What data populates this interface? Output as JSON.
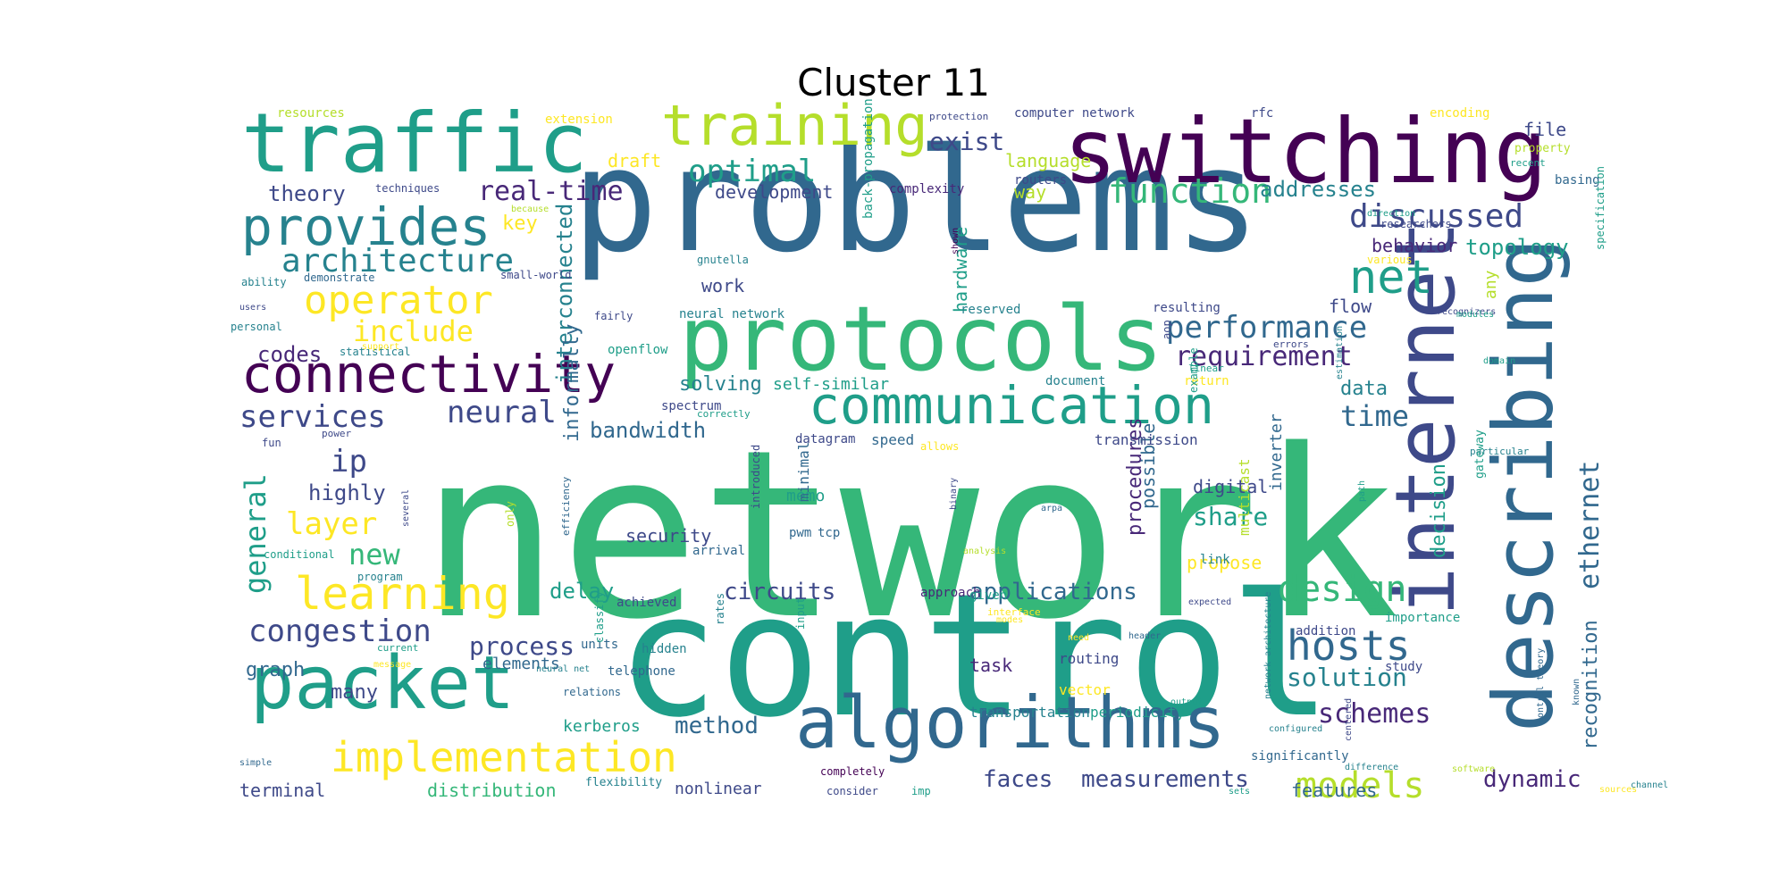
{
  "title": "Cluster 11",
  "palette": {
    "dark_purple": "#440154",
    "purple": "#482878",
    "indigo": "#3e4989",
    "blue": "#31688e",
    "teal": "#26828e",
    "cyan_green": "#1f9e89",
    "green": "#35b779",
    "light_green": "#6ece58",
    "yellow_green": "#b5de2b",
    "yellow": "#fde725"
  },
  "words": [
    {
      "text": "network",
      "c": "green"
    },
    {
      "text": "control",
      "c": "cyan_green"
    },
    {
      "text": "problems",
      "c": "blue"
    },
    {
      "text": "switching",
      "c": "dark_purple"
    },
    {
      "text": "traffic",
      "c": "cyan_green"
    },
    {
      "text": "protocols",
      "c": "green"
    },
    {
      "text": "internet",
      "c": "indigo"
    },
    {
      "text": "describing",
      "c": "blue"
    },
    {
      "text": "packet",
      "c": "cyan_green"
    },
    {
      "text": "algorithms",
      "c": "blue"
    },
    {
      "text": "communication",
      "c": "cyan_green"
    },
    {
      "text": "connectivity",
      "c": "dark_purple"
    },
    {
      "text": "training",
      "c": "yellow_green"
    },
    {
      "text": "provides",
      "c": "teal"
    },
    {
      "text": "learning",
      "c": "yellow"
    },
    {
      "text": "implementation",
      "c": "yellow"
    },
    {
      "text": "operator",
      "c": "yellow"
    },
    {
      "text": "architecture",
      "c": "teal"
    },
    {
      "text": "net",
      "c": "cyan_green"
    },
    {
      "text": "hosts",
      "c": "blue"
    },
    {
      "text": "models",
      "c": "yellow_green"
    },
    {
      "text": "design",
      "c": "green"
    },
    {
      "text": "congestion",
      "c": "indigo"
    },
    {
      "text": "function",
      "c": "green"
    },
    {
      "text": "discussed",
      "c": "indigo"
    },
    {
      "text": "performance",
      "c": "blue"
    },
    {
      "text": "optimal",
      "c": "cyan_green"
    },
    {
      "text": "neural",
      "c": "indigo"
    },
    {
      "text": "services",
      "c": "indigo"
    },
    {
      "text": "real-time",
      "c": "purple"
    },
    {
      "text": "include",
      "c": "yellow"
    },
    {
      "text": "layer",
      "c": "yellow"
    },
    {
      "text": "general",
      "c": "cyan_green"
    },
    {
      "text": "ip",
      "c": "indigo"
    },
    {
      "text": "new",
      "c": "green"
    },
    {
      "text": "ethernet",
      "c": "blue"
    },
    {
      "text": "requirement",
      "c": "purple"
    },
    {
      "text": "time",
      "c": "blue"
    },
    {
      "text": "exist",
      "c": "indigo"
    },
    {
      "text": "schemes",
      "c": "purple"
    },
    {
      "text": "solution",
      "c": "teal"
    },
    {
      "text": "process",
      "c": "indigo"
    },
    {
      "text": "circuits",
      "c": "indigo"
    },
    {
      "text": "applications",
      "c": "blue"
    },
    {
      "text": "faces",
      "c": "indigo"
    },
    {
      "text": "measurements",
      "c": "indigo"
    },
    {
      "text": "method",
      "c": "blue"
    },
    {
      "text": "share",
      "c": "cyan_green"
    },
    {
      "text": "dynamic",
      "c": "purple"
    },
    {
      "text": "topology",
      "c": "cyan_green"
    },
    {
      "text": "addresses",
      "c": "teal"
    },
    {
      "text": "theory",
      "c": "indigo"
    },
    {
      "text": "highly",
      "c": "indigo"
    },
    {
      "text": "codes",
      "c": "purple"
    },
    {
      "text": "delay",
      "c": "cyan_green"
    },
    {
      "text": "bandwidth",
      "c": "blue"
    },
    {
      "text": "solving",
      "c": "teal"
    },
    {
      "text": "data",
      "c": "teal"
    },
    {
      "text": "key",
      "c": "yellow"
    },
    {
      "text": "many",
      "c": "indigo"
    },
    {
      "text": "graph",
      "c": "blue"
    },
    {
      "text": "decision",
      "c": "cyan_green"
    },
    {
      "text": "interconnected",
      "c": "teal"
    },
    {
      "text": "informally",
      "c": "blue"
    },
    {
      "text": "behavior",
      "c": "purple"
    },
    {
      "text": "procedures",
      "c": "purple"
    },
    {
      "text": "recognition",
      "c": "blue"
    },
    {
      "text": "features",
      "c": "blue"
    },
    {
      "text": "language",
      "c": "yellow_green"
    },
    {
      "text": "draft",
      "c": "yellow"
    },
    {
      "text": "file",
      "c": "indigo"
    },
    {
      "text": "work",
      "c": "indigo"
    },
    {
      "text": "development",
      "c": "indigo"
    },
    {
      "text": "way",
      "c": "yellow_green"
    },
    {
      "text": "hardware",
      "c": "cyan_green"
    },
    {
      "text": "flow",
      "c": "indigo"
    },
    {
      "text": "any",
      "c": "yellow_green"
    },
    {
      "text": "possible",
      "c": "blue"
    },
    {
      "text": "digital",
      "c": "indigo"
    },
    {
      "text": "security",
      "c": "indigo"
    },
    {
      "text": "propose",
      "c": "yellow"
    },
    {
      "text": "memo",
      "c": "cyan_green"
    },
    {
      "text": "elements",
      "c": "blue"
    },
    {
      "text": "task",
      "c": "purple"
    },
    {
      "text": "kerberos",
      "c": "cyan_green"
    },
    {
      "text": "distribution",
      "c": "green"
    },
    {
      "text": "nonlinear",
      "c": "indigo"
    },
    {
      "text": "terminal",
      "c": "indigo"
    },
    {
      "text": "self-similar",
      "c": "cyan_green"
    },
    {
      "text": "inverter",
      "c": "blue"
    },
    {
      "text": "multicast",
      "c": "yellow_green"
    },
    {
      "text": "routing",
      "c": "indigo"
    },
    {
      "text": "transportation",
      "c": "teal"
    },
    {
      "text": "periodicity",
      "c": "cyan_green"
    },
    {
      "text": "vector",
      "c": "yellow"
    },
    {
      "text": "link",
      "c": "teal"
    },
    {
      "text": "transmission",
      "c": "indigo"
    },
    {
      "text": "speed",
      "c": "blue"
    },
    {
      "text": "datagram",
      "c": "indigo"
    },
    {
      "text": "significantly",
      "c": "blue"
    },
    {
      "text": "study",
      "c": "indigo"
    },
    {
      "text": "importance",
      "c": "cyan_green"
    },
    {
      "text": "addition",
      "c": "indigo"
    },
    {
      "text": "hidden",
      "c": "teal"
    },
    {
      "text": "units",
      "c": "blue"
    },
    {
      "text": "telephone",
      "c": "blue"
    },
    {
      "text": "achieved",
      "c": "indigo"
    },
    {
      "text": "approach",
      "c": "purple"
    },
    {
      "text": "given",
      "c": "cyan_green"
    },
    {
      "text": "minimal",
      "c": "blue"
    },
    {
      "text": "pwm",
      "c": "blue"
    },
    {
      "text": "tcp",
      "c": "blue"
    },
    {
      "text": "arrival",
      "c": "blue"
    },
    {
      "text": "document",
      "c": "teal"
    },
    {
      "text": "spectrum",
      "c": "indigo"
    },
    {
      "text": "return",
      "c": "yellow"
    },
    {
      "text": "reserved",
      "c": "teal"
    },
    {
      "text": "resulting",
      "c": "indigo"
    },
    {
      "text": "neural network",
      "c": "teal"
    },
    {
      "text": "back-propagation",
      "c": "cyan_green"
    },
    {
      "text": "gnutella",
      "c": "teal"
    },
    {
      "text": "fairly",
      "c": "indigo"
    },
    {
      "text": "openflow",
      "c": "cyan_green"
    },
    {
      "text": "complexity",
      "c": "purple"
    },
    {
      "text": "routers",
      "c": "indigo"
    },
    {
      "text": "computer network",
      "c": "indigo"
    },
    {
      "text": "rfc",
      "c": "indigo"
    },
    {
      "text": "encoding",
      "c": "yellow"
    },
    {
      "text": "property",
      "c": "yellow_green"
    },
    {
      "text": "recent",
      "c": "cyan_green"
    },
    {
      "text": "basing",
      "c": "blue"
    },
    {
      "text": "specification",
      "c": "cyan_green"
    },
    {
      "text": "extension",
      "c": "yellow"
    },
    {
      "text": "protection",
      "c": "indigo"
    },
    {
      "text": "resources",
      "c": "yellow_green"
    },
    {
      "text": "techniques",
      "c": "indigo"
    },
    {
      "text": "because",
      "c": "yellow_green"
    },
    {
      "text": "demonstrate",
      "c": "blue"
    },
    {
      "text": "ability",
      "c": "teal"
    },
    {
      "text": "users",
      "c": "indigo"
    },
    {
      "text": "personal",
      "c": "teal"
    },
    {
      "text": "statistical",
      "c": "teal"
    },
    {
      "text": "support",
      "c": "yellow"
    },
    {
      "text": "small-world",
      "c": "indigo"
    },
    {
      "text": "fun",
      "c": "indigo"
    },
    {
      "text": "power",
      "c": "indigo"
    },
    {
      "text": "conditional",
      "c": "cyan_green"
    },
    {
      "text": "program",
      "c": "teal"
    },
    {
      "text": "several",
      "c": "indigo"
    },
    {
      "text": "only",
      "c": "yellow_green"
    },
    {
      "text": "efficiency",
      "c": "blue"
    },
    {
      "text": "introduced",
      "c": "indigo"
    },
    {
      "text": "classify",
      "c": "cyan_green"
    },
    {
      "text": "input",
      "c": "cyan_green"
    },
    {
      "text": "rates",
      "c": "teal"
    },
    {
      "text": "current",
      "c": "cyan_green"
    },
    {
      "text": "message",
      "c": "yellow"
    },
    {
      "text": "neural net",
      "c": "teal"
    },
    {
      "text": "relations",
      "c": "blue"
    },
    {
      "text": "simple",
      "c": "blue"
    },
    {
      "text": "flexibility",
      "c": "teal"
    },
    {
      "text": "completely",
      "c": "dark_purple"
    },
    {
      "text": "consider",
      "c": "indigo"
    },
    {
      "text": "imp",
      "c": "cyan_green"
    },
    {
      "text": "sets",
      "c": "cyan_green"
    },
    {
      "text": "sources",
      "c": "yellow"
    },
    {
      "text": "software",
      "c": "yellow_green"
    },
    {
      "text": "channel",
      "c": "teal"
    },
    {
      "text": "difference",
      "c": "teal"
    },
    {
      "text": "configured",
      "c": "teal"
    },
    {
      "text": "known",
      "c": "blue"
    },
    {
      "text": "centered",
      "c": "indigo"
    },
    {
      "text": "control theory",
      "c": "blue"
    },
    {
      "text": "network architecture",
      "c": "teal"
    },
    {
      "text": "output",
      "c": "cyan_green"
    },
    {
      "text": "header",
      "c": "blue"
    },
    {
      "text": "need",
      "c": "yellow"
    },
    {
      "text": "modes",
      "c": "yellow"
    },
    {
      "text": "expected",
      "c": "indigo"
    },
    {
      "text": "interface",
      "c": "yellow"
    },
    {
      "text": "arpa",
      "c": "blue"
    },
    {
      "text": "analysis",
      "c": "yellow_green"
    },
    {
      "text": "binary",
      "c": "indigo"
    },
    {
      "text": "example",
      "c": "cyan_green"
    },
    {
      "text": "linear",
      "c": "cyan_green"
    },
    {
      "text": "aop",
      "c": "indigo"
    },
    {
      "text": "errors",
      "c": "indigo"
    },
    {
      "text": "particular",
      "c": "teal"
    },
    {
      "text": "gateway",
      "c": "cyan_green"
    },
    {
      "text": "path",
      "c": "cyan_green"
    },
    {
      "text": "domain",
      "c": "cyan_green"
    },
    {
      "text": "correctly",
      "c": "cyan_green"
    },
    {
      "text": "allows",
      "c": "yellow"
    },
    {
      "text": "estimation",
      "c": "teal"
    },
    {
      "text": "recognizers",
      "c": "indigo"
    },
    {
      "text": "modules",
      "c": "cyan_green"
    },
    {
      "text": "various",
      "c": "yellow"
    },
    {
      "text": "researchers",
      "c": "indigo"
    },
    {
      "text": "direction",
      "c": "cyan_green"
    },
    {
      "text": "shown",
      "c": "dark_purple"
    }
  ]
}
